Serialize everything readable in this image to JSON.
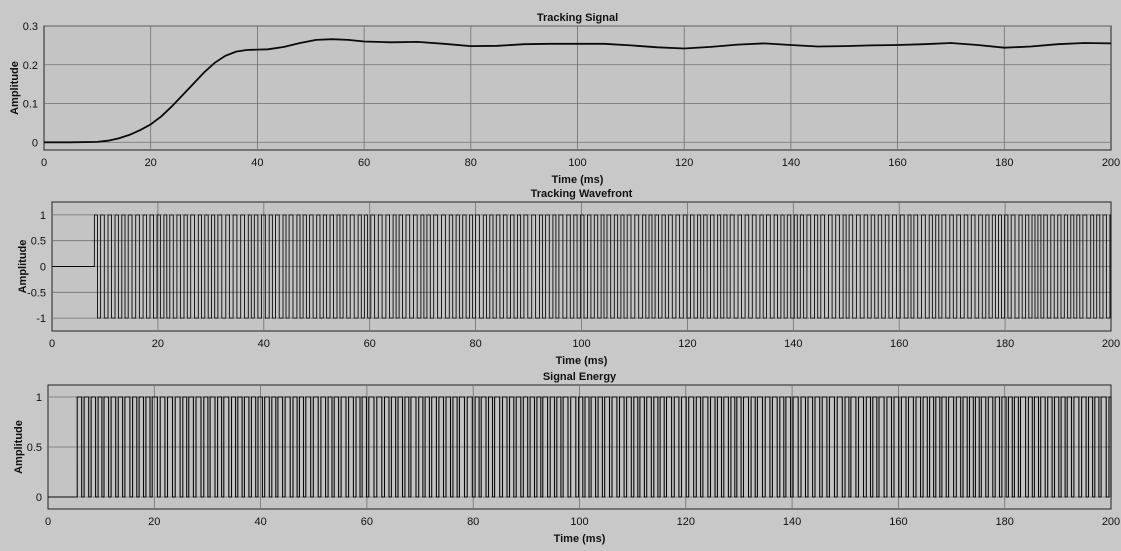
{
  "chart_data": [
    {
      "type": "line",
      "title": "Tracking Signal",
      "xlabel": "Time (ms)",
      "ylabel": "Amplitude",
      "xlim": [
        0,
        200
      ],
      "ylim": [
        -0.02,
        0.3
      ],
      "xticks": [
        "0",
        "20",
        "40",
        "60",
        "80",
        "100",
        "120",
        "140",
        "160",
        "180",
        "200"
      ],
      "yticks": [
        "0",
        "0.1",
        "0.2",
        "0.3"
      ],
      "grid": true,
      "series": [
        {
          "values_kind": "xy",
          "x": [
            0,
            5,
            10,
            12,
            14,
            16,
            18,
            20,
            22,
            24,
            26,
            28,
            30,
            32,
            34,
            36,
            38,
            40,
            42,
            45,
            48,
            51,
            54,
            57,
            60,
            65,
            70,
            75,
            80,
            85,
            90,
            95,
            100,
            105,
            110,
            115,
            120,
            125,
            130,
            135,
            140,
            145,
            150,
            155,
            160,
            165,
            170,
            175,
            180,
            185,
            190,
            195,
            200
          ],
          "y": [
            0,
            0,
            0.001,
            0.004,
            0.01,
            0.019,
            0.031,
            0.046,
            0.067,
            0.093,
            0.122,
            0.151,
            0.18,
            0.205,
            0.223,
            0.234,
            0.238,
            0.239,
            0.24,
            0.246,
            0.256,
            0.264,
            0.266,
            0.264,
            0.26,
            0.258,
            0.259,
            0.254,
            0.248,
            0.249,
            0.253,
            0.254,
            0.254,
            0.254,
            0.25,
            0.245,
            0.242,
            0.246,
            0.252,
            0.255,
            0.251,
            0.247,
            0.248,
            0.25,
            0.251,
            0.253,
            0.256,
            0.251,
            0.244,
            0.247,
            0.253,
            0.256,
            0.255
          ]
        }
      ]
    },
    {
      "type": "line",
      "title": "Tracking Wavefront",
      "xlabel": "Time (ms)",
      "ylabel": "Amplitude",
      "xlim": [
        0,
        200
      ],
      "ylim": [
        -1.25,
        1.25
      ],
      "xticks": [
        "0",
        "20",
        "40",
        "60",
        "80",
        "100",
        "120",
        "140",
        "160",
        "180",
        "200"
      ],
      "yticks": [
        "-1",
        "-0.5",
        "0",
        "0.5",
        "1"
      ],
      "grid": true,
      "series": [
        {
          "values_kind": "square_wave",
          "start_x": 8,
          "baseline": 0,
          "high": 1,
          "low": -1,
          "period": 1.3
        }
      ]
    },
    {
      "type": "line",
      "title": "Signal Energy",
      "xlabel": "Time (ms)",
      "ylabel": "Amplitude",
      "xlim": [
        0,
        200
      ],
      "ylim": [
        -0.12,
        1.12
      ],
      "xticks": [
        "0",
        "20",
        "40",
        "60",
        "80",
        "100",
        "120",
        "140",
        "160",
        "180",
        "200"
      ],
      "yticks": [
        "0",
        "0.5",
        "1"
      ],
      "grid": true,
      "series": [
        {
          "values_kind": "pulse_train",
          "start_x": 5.5,
          "baseline": 0,
          "high": 1,
          "period": 1.3
        }
      ]
    }
  ]
}
